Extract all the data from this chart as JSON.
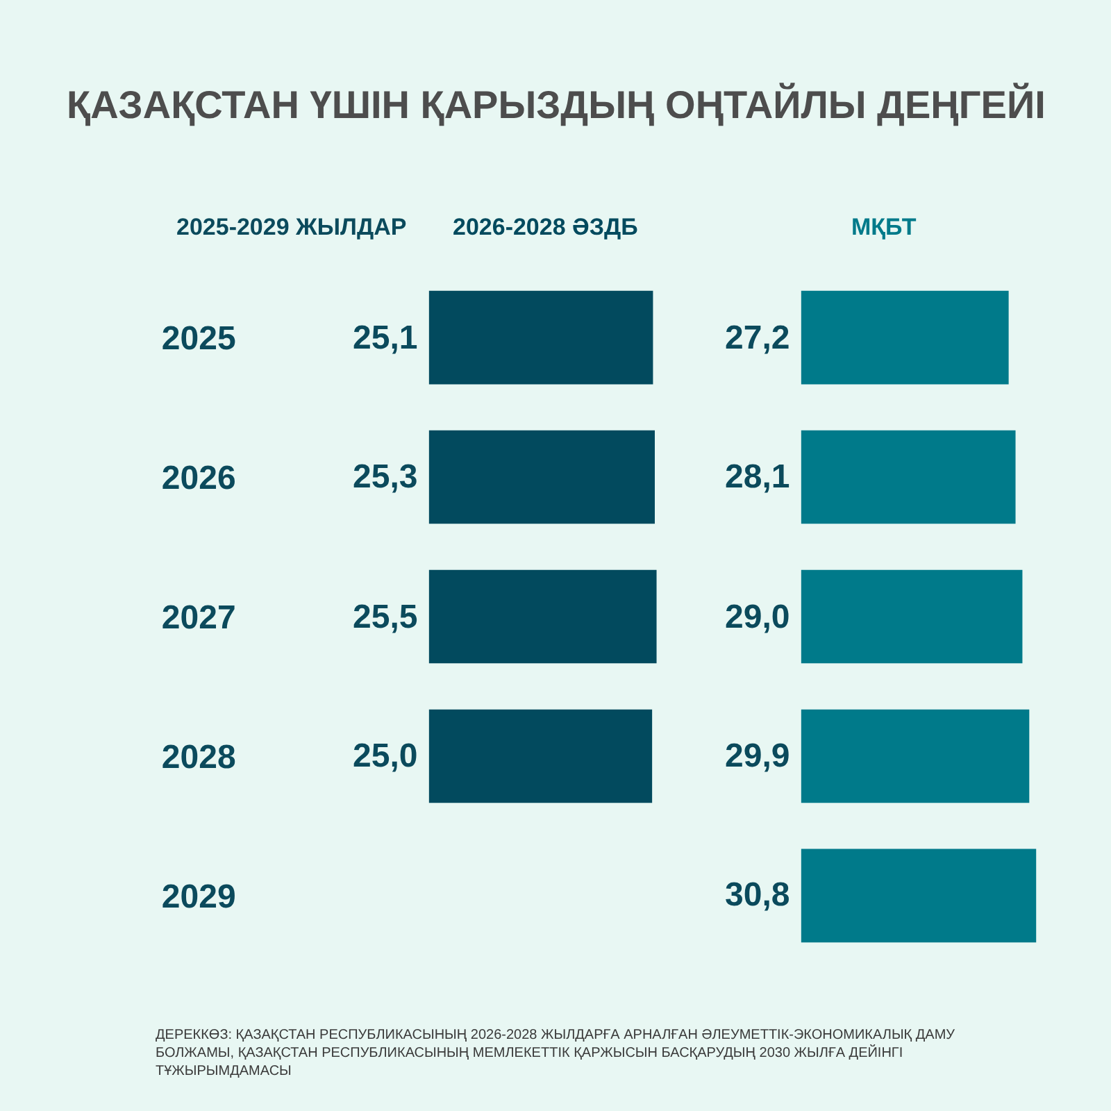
{
  "chart_data": [
    {
      "type": "bar",
      "orientation": "horizontal",
      "title": "ҚАЗАҚСТАН ҮШІН ҚАРЫЗДЫҢ ОҢТАЙЛЫ ДЕҢГЕЙІ",
      "subtitle": "2026-2028 ӘЗДБ",
      "ylabel": "2025-2029 ЖЫЛДАР",
      "categories": [
        "2025",
        "2026",
        "2027",
        "2028",
        "2029"
      ],
      "values": [
        25.1,
        25.3,
        25.5,
        25.0,
        null
      ],
      "value_labels": [
        "25,1",
        "25,3",
        "25,5",
        "25,0",
        null
      ],
      "color": "#024a5e",
      "xlim": [
        0,
        26
      ],
      "tick_labels": "y"
    },
    {
      "type": "bar",
      "orientation": "horizontal",
      "subtitle": "МҚБТ",
      "categories": [
        "2025",
        "2026",
        "2027",
        "2028",
        "2029"
      ],
      "values": [
        27.2,
        28.1,
        29.0,
        29.9,
        30.8
      ],
      "value_labels": [
        "27,2",
        "28,1",
        "29,0",
        "29,9",
        "30,8"
      ],
      "color": "#007a8a",
      "xlim": [
        0,
        31
      ],
      "tick_labels": false,
      "annotations": [
        "ДЕРЕККӨЗ: ҚАЗАҚСТАН РЕСПУБЛИКАСЫНЫҢ 2026-2028 ЖЫЛДАРҒА АРНАЛҒАН ӘЛЕУМЕТТІК-ЭКОНОМИКАЛЫҚ ДАМУ БОЛЖАМЫ, ҚАЗАҚСТАН РЕСПУБЛИКАСЫНЫҢ МЕМЛЕКЕТТІК ҚАРЖЫСЫН БАСҚАРУДЫҢ 2030 ЖЫЛҒА ДЕЙІНГІ ТҰЖЫРЫМДАМАСЫ"
      ]
    }
  ]
}
